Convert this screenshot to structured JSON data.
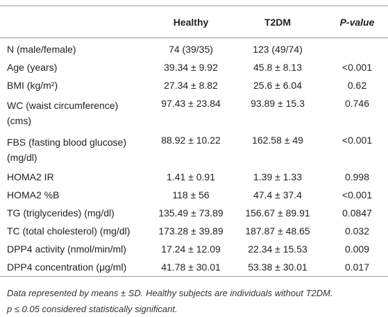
{
  "table": {
    "header": [
      "",
      "Healthy",
      "T2DM",
      "P-value"
    ],
    "rows": [
      [
        [
          "N (male/female)"
        ],
        "74 (39/35)",
        "123 (49/74)",
        ""
      ],
      [
        [
          "Age (years)"
        ],
        "39.34 ± 9.92",
        "45.8 ± 8.13",
        "<0.001"
      ],
      [
        [
          "BMI (kg/m²)"
        ],
        "27.34 ± 8.82",
        "25.6 ± 6.04",
        "0.62"
      ],
      [
        [
          "WC (waist circumference)",
          "(cms)"
        ],
        "97.43 ± 23.84",
        "93.89 ± 15.3",
        "0.746"
      ],
      [
        [
          "FBS (fasting blood glucose)",
          "(mg/dl)"
        ],
        "88.92 ± 10.22",
        "162.58 ± 49",
        "<0.001"
      ],
      [
        [
          "HOMA2 IR"
        ],
        "1.41 ± 0.91",
        "1.39 ± 1.33",
        "0.998"
      ],
      [
        [
          "HOMA2 %B"
        ],
        "118 ± 56",
        "47.4 ± 37.4",
        "<0.001"
      ],
      [
        [
          "TG (triglycerides) (mg/dl)"
        ],
        "135.49 ± 73.89",
        "156.67 ± 89.91",
        "0.0847"
      ],
      [
        [
          "TC (total cholesterol) (mg/dl)"
        ],
        "173.28 ± 39.89",
        "187.87 ± 48.65",
        "0.032"
      ],
      [
        [
          "DPP4 activity (nmol/min/ml)"
        ],
        "17.24 ± 12.09",
        "22.34 ± 15.53",
        "0.009"
      ],
      [
        [
          "DPP4 concentration (μg/ml)"
        ],
        "41.78 ± 30.01",
        "53.38 ± 30.01",
        "0.017"
      ]
    ],
    "notes": [
      "Data represented by means ± SD. Healthy subjects are individuals without T2DM.",
      "p ≤ 0.05 considered statistically significant."
    ]
  }
}
